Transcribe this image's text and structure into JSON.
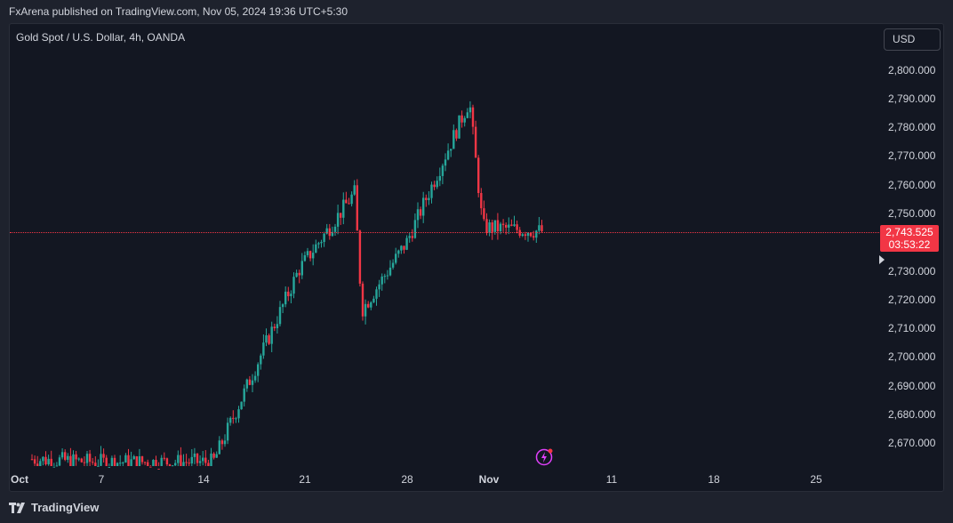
{
  "caption": "FxArena published on TradingView.com, Nov 05, 2024 19:36 UTC+5:30",
  "symbol_title": "Gold Spot / U.S. Dollar, 4h, OANDA",
  "currency_button": "USD",
  "price_axis": [
    "2,800.000",
    "2,790.000",
    "2,780.000",
    "2,770.000",
    "2,760.000",
    "2,750.000",
    "2,730.000",
    "2,720.000",
    "2,710.000",
    "2,700.000",
    "2,690.000",
    "2,680.000",
    "2,670.000"
  ],
  "current_price": "2,743.525",
  "countdown": "03:53:22",
  "date_axis": [
    "Oct",
    "7",
    "14",
    "21",
    "28",
    "Nov",
    "11",
    "18",
    "25"
  ],
  "footer_brand": "TradingView",
  "colors": {
    "up": "#26a69a",
    "down": "#f23645",
    "background": "#131722",
    "accent": "#e040fb"
  },
  "icons": {
    "lightning": "lightning-icon",
    "logo": "tradingview-logo-icon",
    "scroll": "scroll-right-arrow-icon"
  },
  "chart_data": {
    "type": "candlestick",
    "title": "Gold Spot / U.S. Dollar, 4h, OANDA",
    "ylim": [
      2662,
      2808
    ],
    "x_ticks": [
      "Oct",
      "7",
      "14",
      "21",
      "28",
      "Nov",
      "11",
      "18",
      "25"
    ],
    "y_ticks": [
      2670,
      2680,
      2690,
      2700,
      2710,
      2720,
      2730,
      2740,
      2750,
      2760,
      2770,
      2780,
      2790,
      2800
    ],
    "current_price": 2743.525,
    "key_points": [
      {
        "x": "Oct",
        "y": 2664
      },
      {
        "x": "7",
        "y": 2663
      },
      {
        "x": "14",
        "y": 2663
      },
      {
        "x": "21",
        "y": 2730
      },
      {
        "x": "24",
        "y": 2757
      },
      {
        "x": "24",
        "y": 2716
      },
      {
        "x": "28",
        "y": 2740
      },
      {
        "x": "31",
        "y": 2789
      },
      {
        "x": "Nov",
        "y": 2745
      },
      {
        "x": "Nov 5",
        "y": 2743.5
      }
    ]
  }
}
